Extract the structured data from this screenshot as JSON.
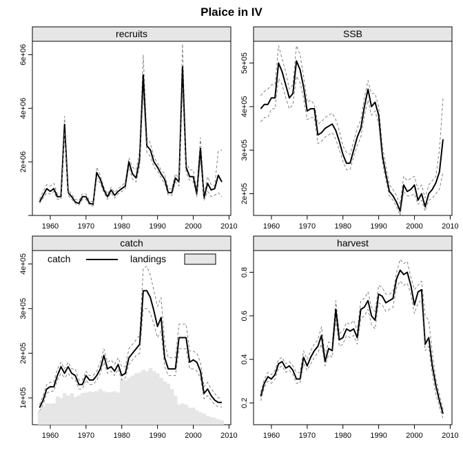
{
  "title": "Plaice in IV",
  "colors": {
    "line": "#000000",
    "ci": "#808080",
    "strip": "#e6e6e6",
    "landings_bar": "#e6e6e6"
  },
  "chart_data": [
    {
      "type": "line",
      "title": "recruits",
      "xlim": [
        1957,
        2008
      ],
      "x_ticks": [
        1960,
        1970,
        1980,
        1990,
        2000,
        2010
      ],
      "ylim": [
        0,
        6500000
      ],
      "y_ticks": [
        0,
        2000000,
        4000000,
        6000000
      ],
      "y_tick_labels": [
        "",
        "2e+06",
        "4e+06",
        "6e+06"
      ],
      "x": [
        1957,
        1958,
        1959,
        1960,
        1961,
        1962,
        1963,
        1964,
        1965,
        1966,
        1967,
        1968,
        1969,
        1970,
        1971,
        1972,
        1973,
        1974,
        1975,
        1976,
        1977,
        1978,
        1979,
        1980,
        1981,
        1982,
        1983,
        1984,
        1985,
        1986,
        1987,
        1988,
        1989,
        1990,
        1991,
        1992,
        1993,
        1994,
        1995,
        1996,
        1997,
        1998,
        1999,
        2000,
        2001,
        2002,
        2003,
        2004,
        2005,
        2006,
        2007,
        2008
      ],
      "series": [
        {
          "role": "upper",
          "values": [
            600000,
            900000,
            1150000,
            1100000,
            1200000,
            800000,
            800000,
            3700000,
            950000,
            800000,
            600000,
            550000,
            800000,
            800000,
            550000,
            500000,
            1800000,
            1500000,
            1050000,
            800000,
            1050000,
            850000,
            1000000,
            1100000,
            1250000,
            2150000,
            1800000,
            1700000,
            2400000,
            6000000,
            2900000,
            2700000,
            2200000,
            1950000,
            1700000,
            1550000,
            1000000,
            1000000,
            1550000,
            1400000,
            6400000,
            2000000,
            1700000,
            1700000,
            1000000,
            2900000,
            800000,
            1450000,
            1150000,
            1100000,
            2400000,
            2450000
          ]
        },
        {
          "role": "estimate",
          "values": [
            500000,
            750000,
            1000000,
            900000,
            1000000,
            700000,
            700000,
            3400000,
            850000,
            700000,
            500000,
            450000,
            700000,
            700000,
            450000,
            420000,
            1600000,
            1350000,
            950000,
            700000,
            950000,
            750000,
            900000,
            1000000,
            1100000,
            2000000,
            1550000,
            1400000,
            2100000,
            5250000,
            2600000,
            2450000,
            2000000,
            1800000,
            1550000,
            1350000,
            850000,
            850000,
            1400000,
            1250000,
            5550000,
            1800000,
            1450000,
            1450000,
            800000,
            2500000,
            650000,
            1200000,
            950000,
            1000000,
            1500000,
            1250000
          ]
        },
        {
          "role": "lower",
          "values": [
            450000,
            650000,
            850000,
            800000,
            900000,
            600000,
            600000,
            3100000,
            750000,
            600000,
            450000,
            380000,
            600000,
            600000,
            380000,
            350000,
            1400000,
            1200000,
            850000,
            600000,
            850000,
            650000,
            800000,
            900000,
            1000000,
            1800000,
            1350000,
            1250000,
            1850000,
            4600000,
            2350000,
            2200000,
            1800000,
            1650000,
            1400000,
            1200000,
            750000,
            750000,
            1250000,
            1100000,
            4800000,
            1600000,
            1300000,
            1250000,
            700000,
            2100000,
            550000,
            900000,
            700000,
            750000,
            850000,
            700000
          ]
        }
      ]
    },
    {
      "type": "line",
      "title": "SSB",
      "xlim": [
        1957,
        2008
      ],
      "x_ticks": [
        1960,
        1970,
        1980,
        1990,
        2000,
        2010
      ],
      "ylim": [
        150000,
        550000
      ],
      "y_ticks": [
        200000,
        300000,
        400000,
        500000
      ],
      "y_tick_labels": [
        "2e+05",
        "3e+05",
        "4e+05",
        "5e+05"
      ],
      "x": [
        1957,
        1958,
        1959,
        1960,
        1961,
        1962,
        1963,
        1964,
        1965,
        1966,
        1967,
        1968,
        1969,
        1970,
        1971,
        1972,
        1973,
        1974,
        1975,
        1976,
        1977,
        1978,
        1979,
        1980,
        1981,
        1982,
        1983,
        1984,
        1985,
        1986,
        1987,
        1988,
        1989,
        1990,
        1991,
        1992,
        1993,
        1994,
        1995,
        1996,
        1997,
        1998,
        1999,
        2000,
        2001,
        2002,
        2003,
        2004,
        2005,
        2006,
        2007,
        2008
      ],
      "series": [
        {
          "role": "upper",
          "values": [
            425000,
            435000,
            440000,
            450000,
            450000,
            540000,
            510000,
            480000,
            440000,
            450000,
            540000,
            520000,
            470000,
            410000,
            415000,
            405000,
            360000,
            365000,
            375000,
            380000,
            385000,
            370000,
            345000,
            310000,
            295000,
            290000,
            320000,
            350000,
            370000,
            420000,
            460000,
            430000,
            430000,
            400000,
            310000,
            265000,
            220000,
            210000,
            195000,
            175000,
            240000,
            230000,
            235000,
            240000,
            210000,
            220000,
            190000,
            220000,
            230000,
            240000,
            300000,
            420000
          ]
        },
        {
          "role": "estimate",
          "values": [
            395000,
            405000,
            405000,
            420000,
            420000,
            500000,
            480000,
            450000,
            420000,
            430000,
            505000,
            485000,
            445000,
            390000,
            395000,
            395000,
            335000,
            340000,
            350000,
            355000,
            360000,
            345000,
            320000,
            290000,
            270000,
            270000,
            300000,
            330000,
            350000,
            400000,
            440000,
            400000,
            410000,
            380000,
            290000,
            245000,
            205000,
            195000,
            180000,
            160000,
            220000,
            205000,
            210000,
            220000,
            185000,
            200000,
            170000,
            200000,
            210000,
            225000,
            250000,
            325000
          ]
        },
        {
          "role": "lower",
          "values": [
            365000,
            375000,
            375000,
            395000,
            395000,
            465000,
            450000,
            420000,
            395000,
            405000,
            470000,
            455000,
            420000,
            370000,
            375000,
            375000,
            315000,
            320000,
            330000,
            335000,
            340000,
            325000,
            300000,
            275000,
            255000,
            255000,
            285000,
            310000,
            330000,
            380000,
            415000,
            380000,
            390000,
            360000,
            275000,
            230000,
            195000,
            185000,
            170000,
            150000,
            205000,
            195000,
            195000,
            200000,
            175000,
            185000,
            160000,
            185000,
            190000,
            200000,
            210000,
            250000
          ]
        }
      ]
    },
    {
      "type": "line",
      "title": "catch",
      "xlim": [
        1957,
        2008
      ],
      "x_ticks": [
        1960,
        1970,
        1980,
        1990,
        2000,
        2010
      ],
      "ylim": [
        40000,
        430000
      ],
      "y_ticks": [
        100000,
        200000,
        300000,
        400000
      ],
      "y_tick_labels": [
        "1e+05",
        "2e+05",
        "3e+05",
        "4e+05"
      ],
      "legend": {
        "position": "top-left",
        "entries": [
          "catch",
          "landings"
        ]
      },
      "x": [
        1957,
        1958,
        1959,
        1960,
        1961,
        1962,
        1963,
        1964,
        1965,
        1966,
        1967,
        1968,
        1969,
        1970,
        1971,
        1972,
        1973,
        1974,
        1975,
        1976,
        1977,
        1978,
        1979,
        1980,
        1981,
        1982,
        1983,
        1984,
        1985,
        1986,
        1987,
        1988,
        1989,
        1990,
        1991,
        1992,
        1993,
        1994,
        1995,
        1996,
        1997,
        1998,
        1999,
        2000,
        2001,
        2002,
        2003,
        2004,
        2005,
        2006,
        2007,
        2008
      ],
      "landings": [
        70000,
        80000,
        88000,
        87000,
        88000,
        103000,
        100000,
        111000,
        105000,
        110000,
        102000,
        106000,
        111000,
        112000,
        114000,
        113000,
        115000,
        120000,
        115000,
        113000,
        113000,
        115000,
        112000,
        142000,
        140000,
        145000,
        150000,
        155000,
        157000,
        163000,
        160000,
        167000,
        160000,
        155000,
        145000,
        137000,
        132000,
        120000,
        105000,
        85000,
        88000,
        85000,
        78000,
        78000,
        72000,
        68000,
        65000,
        60000,
        57000,
        55000,
        52000,
        50000
      ],
      "series": [
        {
          "role": "upper",
          "values": [
            85000,
            105000,
            130000,
            135000,
            135000,
            165000,
            180000,
            165000,
            180000,
            165000,
            165000,
            140000,
            140000,
            160000,
            150000,
            150000,
            160000,
            180000,
            210000,
            180000,
            185000,
            175000,
            190000,
            170000,
            170000,
            210000,
            220000,
            230000,
            240000,
            390000,
            395000,
            375000,
            340000,
            305000,
            325000,
            225000,
            190000,
            190000,
            190000,
            265000,
            265000,
            265000,
            205000,
            205000,
            200000,
            180000,
            125000,
            135000,
            120000,
            110000,
            100000,
            100000
          ]
        },
        {
          "role": "estimate",
          "values": [
            78000,
            95000,
            120000,
            125000,
            125000,
            150000,
            170000,
            155000,
            170000,
            155000,
            150000,
            130000,
            130000,
            150000,
            140000,
            140000,
            150000,
            165000,
            195000,
            165000,
            170000,
            160000,
            175000,
            150000,
            155000,
            190000,
            200000,
            210000,
            220000,
            340000,
            340000,
            325000,
            295000,
            260000,
            280000,
            190000,
            165000,
            165000,
            165000,
            235000,
            235000,
            235000,
            180000,
            185000,
            180000,
            160000,
            110000,
            120000,
            105000,
            95000,
            90000,
            90000
          ]
        },
        {
          "role": "lower",
          "values": [
            70000,
            85000,
            110000,
            115000,
            115000,
            140000,
            155000,
            145000,
            155000,
            145000,
            140000,
            120000,
            120000,
            140000,
            130000,
            130000,
            140000,
            155000,
            180000,
            155000,
            160000,
            150000,
            165000,
            140000,
            145000,
            175000,
            185000,
            195000,
            200000,
            300000,
            300000,
            290000,
            265000,
            235000,
            250000,
            170000,
            150000,
            150000,
            150000,
            210000,
            210000,
            210000,
            165000,
            165000,
            160000,
            145000,
            98000,
            105000,
            95000,
            85000,
            80000,
            80000
          ]
        }
      ]
    },
    {
      "type": "line",
      "title": "harvest",
      "xlim": [
        1957,
        2008
      ],
      "x_ticks": [
        1960,
        1970,
        1980,
        1990,
        2000,
        2010
      ],
      "ylim": [
        0.1,
        0.9
      ],
      "y_ticks": [
        0.2,
        0.4,
        0.6,
        0.8
      ],
      "y_tick_labels": [
        "0.2",
        "0.4",
        "0.6",
        "0.8"
      ],
      "x": [
        1957,
        1958,
        1959,
        1960,
        1961,
        1962,
        1963,
        1964,
        1965,
        1966,
        1967,
        1968,
        1969,
        1970,
        1971,
        1972,
        1973,
        1974,
        1975,
        1976,
        1977,
        1978,
        1979,
        1980,
        1981,
        1982,
        1983,
        1984,
        1985,
        1986,
        1987,
        1988,
        1989,
        1990,
        1991,
        1992,
        1993,
        1994,
        1995,
        1996,
        1997,
        1998,
        1999,
        2000,
        2001,
        2002,
        2003,
        2004,
        2005,
        2006,
        2007,
        2008
      ],
      "series": [
        {
          "role": "upper",
          "values": [
            0.25,
            0.31,
            0.34,
            0.33,
            0.35,
            0.4,
            0.41,
            0.38,
            0.39,
            0.37,
            0.34,
            0.34,
            0.44,
            0.4,
            0.44,
            0.47,
            0.49,
            0.55,
            0.42,
            0.48,
            0.47,
            0.67,
            0.52,
            0.53,
            0.57,
            0.56,
            0.58,
            0.53,
            0.67,
            0.68,
            0.71,
            0.64,
            0.62,
            0.74,
            0.73,
            0.7,
            0.7,
            0.71,
            0.8,
            0.86,
            0.84,
            0.85,
            0.78,
            0.72,
            0.74,
            0.76,
            0.6,
            0.58,
            0.43,
            0.31,
            0.24,
            0.17
          ]
        },
        {
          "role": "estimate",
          "values": [
            0.23,
            0.29,
            0.32,
            0.31,
            0.33,
            0.38,
            0.39,
            0.36,
            0.37,
            0.35,
            0.31,
            0.31,
            0.41,
            0.37,
            0.41,
            0.44,
            0.46,
            0.51,
            0.39,
            0.45,
            0.44,
            0.63,
            0.49,
            0.5,
            0.54,
            0.53,
            0.54,
            0.5,
            0.63,
            0.64,
            0.67,
            0.6,
            0.58,
            0.7,
            0.69,
            0.66,
            0.67,
            0.68,
            0.77,
            0.81,
            0.79,
            0.8,
            0.74,
            0.65,
            0.71,
            0.72,
            0.47,
            0.5,
            0.37,
            0.28,
            0.21,
            0.15
          ]
        },
        {
          "role": "lower",
          "values": [
            0.21,
            0.27,
            0.3,
            0.29,
            0.31,
            0.36,
            0.37,
            0.34,
            0.35,
            0.33,
            0.29,
            0.29,
            0.38,
            0.35,
            0.38,
            0.41,
            0.43,
            0.47,
            0.37,
            0.42,
            0.41,
            0.58,
            0.46,
            0.47,
            0.51,
            0.5,
            0.51,
            0.47,
            0.59,
            0.6,
            0.63,
            0.56,
            0.54,
            0.66,
            0.65,
            0.62,
            0.63,
            0.64,
            0.73,
            0.76,
            0.74,
            0.75,
            0.7,
            0.61,
            0.66,
            0.67,
            0.44,
            0.46,
            0.33,
            0.24,
            0.18,
            0.13
          ]
        }
      ]
    }
  ]
}
